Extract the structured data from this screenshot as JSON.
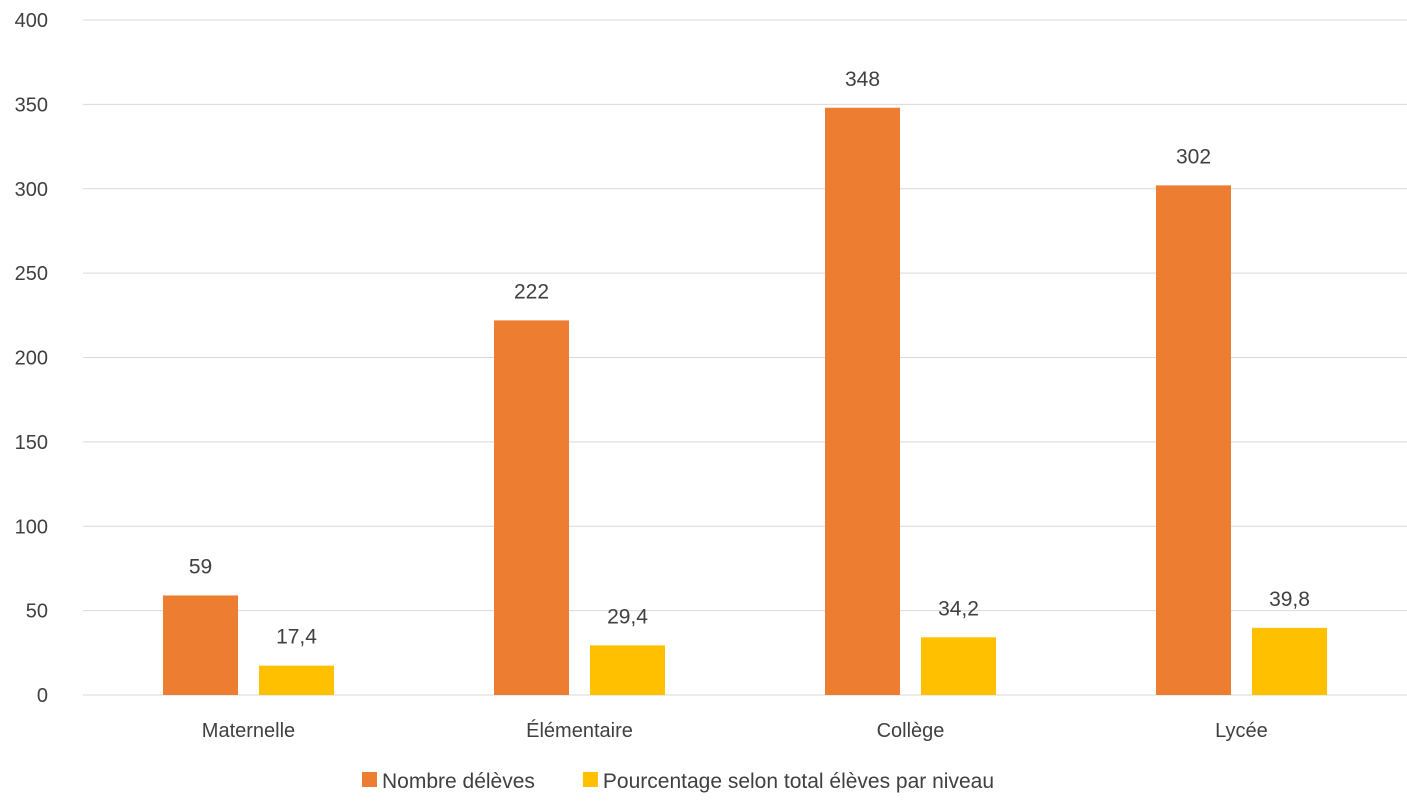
{
  "chart_data": {
    "type": "bar",
    "title": "",
    "xlabel": "",
    "ylabel": "",
    "categories": [
      "Maternelle",
      "Élémentaire",
      "Collège",
      "Lycée"
    ],
    "series": [
      {
        "name": "Nombre délèves",
        "color": "#ED7D31",
        "values": [
          59,
          222,
          348,
          302
        ],
        "labels": [
          "59",
          "222",
          "348",
          "302"
        ]
      },
      {
        "name": "Pourcentage selon total élèves par niveau",
        "color": "#FFC000",
        "values": [
          17.4,
          29.4,
          34.2,
          39.8
        ],
        "labels": [
          "17,4",
          "29,4",
          "34,2",
          "39,8"
        ]
      }
    ],
    "ylim": [
      0,
      400
    ],
    "yticks": [
      0,
      50,
      100,
      150,
      200,
      250,
      300,
      350,
      400
    ],
    "grid": true,
    "legend": "bottom"
  }
}
